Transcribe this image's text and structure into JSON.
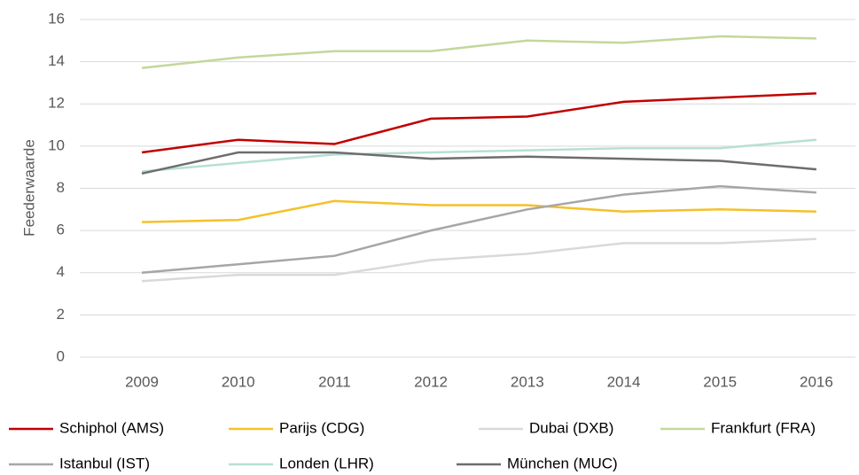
{
  "chart_data": {
    "type": "line",
    "y_label": "Feederwaarde",
    "categories": [
      "2009",
      "2010",
      "2011",
      "2012",
      "2013",
      "2014",
      "2015",
      "2016"
    ],
    "series": [
      {
        "name": "Schiphol (AMS)",
        "color": "#c00000",
        "values": [
          9.7,
          10.3,
          10.1,
          11.3,
          11.4,
          12.1,
          12.3,
          12.5
        ]
      },
      {
        "name": "Parijs (CDG)",
        "color": "#f5c02a",
        "values": [
          6.4,
          6.5,
          7.4,
          7.2,
          7.2,
          6.9,
          7.0,
          6.9
        ]
      },
      {
        "name": "Dubai (DXB)",
        "color": "#d9d9d9",
        "values": [
          3.6,
          3.9,
          3.9,
          4.6,
          4.9,
          5.4,
          5.4,
          5.6
        ]
      },
      {
        "name": "Frankfurt (FRA)",
        "color": "#c4d79b",
        "values": [
          13.7,
          14.2,
          14.5,
          14.5,
          15.0,
          14.9,
          15.2,
          15.1
        ]
      },
      {
        "name": "Istanbul (IST)",
        "color": "#a6a6a6",
        "values": [
          4.0,
          4.4,
          4.8,
          6.0,
          7.0,
          7.7,
          8.1,
          7.8
        ]
      },
      {
        "name": "Londen (LHR)",
        "color": "#b7dfd6",
        "values": [
          8.8,
          9.2,
          9.6,
          9.7,
          9.8,
          9.9,
          9.9,
          10.3
        ]
      },
      {
        "name": "München (MUC)",
        "color": "#6d6d6d",
        "values": [
          8.7,
          9.7,
          9.7,
          9.4,
          9.5,
          9.4,
          9.3,
          8.9
        ]
      }
    ],
    "ylim": [
      0,
      16
    ],
    "yticks": [
      0,
      2,
      4,
      6,
      8,
      10,
      12,
      14,
      16
    ],
    "grid": true,
    "legend": "bottom"
  }
}
